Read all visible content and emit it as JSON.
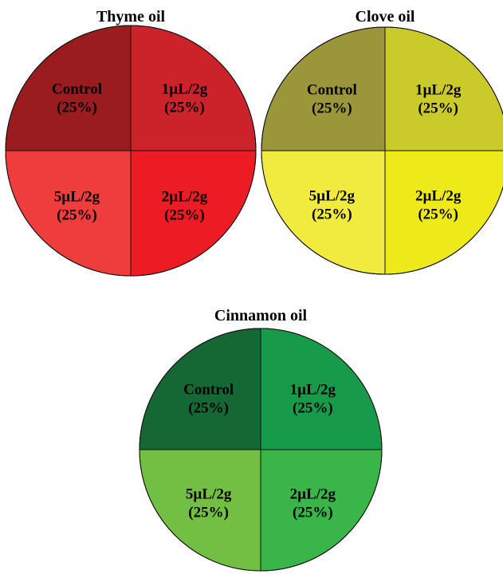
{
  "chart_data": [
    {
      "type": "pie",
      "title": "Thyme oil",
      "colors": [
        "#9a1c1f",
        "#cc2229",
        "#ef3d3e",
        "#ed1c24"
      ],
      "slices": [
        {
          "label": "Control",
          "value": 25,
          "display": "(25%)"
        },
        {
          "label": "1µL/2g",
          "value": 25,
          "display": "(25%)"
        },
        {
          "label": "5µL/2g",
          "value": 25,
          "display": "(25%)"
        },
        {
          "label": "2µL/2g",
          "value": 25,
          "display": "(25%)"
        }
      ]
    },
    {
      "type": "pie",
      "title": "Clove oil",
      "colors": [
        "#9c963b",
        "#cacb2b",
        "#f0eb3e",
        "#eeea1a"
      ],
      "slices": [
        {
          "label": "Control",
          "value": 25,
          "display": "(25%)"
        },
        {
          "label": "1µL/2g",
          "value": 25,
          "display": "(25%)"
        },
        {
          "label": "5µL/2g",
          "value": 25,
          "display": "(25%)"
        },
        {
          "label": "2µL/2g",
          "value": 25,
          "display": "(25%)"
        }
      ]
    },
    {
      "type": "pie",
      "title": "Cinnamon oil",
      "colors": [
        "#156734",
        "#179b4a",
        "#72bf44",
        "#39b54a"
      ],
      "slices": [
        {
          "label": "Control",
          "value": 25,
          "display": "(25%)"
        },
        {
          "label": "1µL/2g",
          "value": 25,
          "display": "(25%)"
        },
        {
          "label": "5µL/2g",
          "value": 25,
          "display": "(25%)"
        },
        {
          "label": "2µL/2g",
          "value": 25,
          "display": "(25%)"
        }
      ]
    }
  ]
}
